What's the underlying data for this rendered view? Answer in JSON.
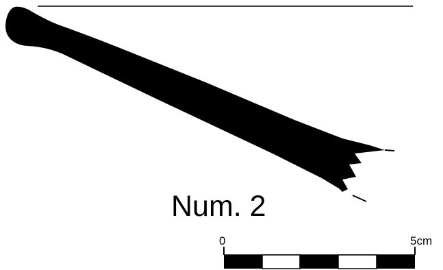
{
  "figure": {
    "label": "Num. 2"
  },
  "scale_bar": {
    "start_label": "0",
    "end_label": "5cm",
    "segments": 5,
    "segment_colors": [
      "#000000",
      "#ffffff",
      "#000000",
      "#ffffff",
      "#000000"
    ]
  },
  "colors": {
    "ink": "#000000",
    "background": "#ffffff"
  }
}
